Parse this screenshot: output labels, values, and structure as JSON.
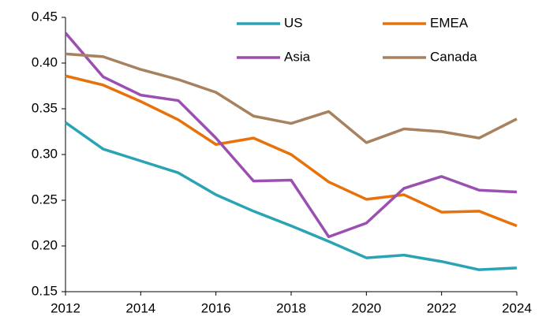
{
  "chart_data": {
    "type": "line",
    "x": [
      2012,
      2013,
      2014,
      2015,
      2016,
      2017,
      2018,
      2019,
      2020,
      2021,
      2022,
      2023,
      2024
    ],
    "series": [
      {
        "name": "US",
        "color": "#2aa3b5",
        "values": [
          0.335,
          0.306,
          0.293,
          0.28,
          0.256,
          0.238,
          0.222,
          0.205,
          0.187,
          0.19,
          0.183,
          0.174,
          0.176
        ]
      },
      {
        "name": "EMEA",
        "color": "#e8710a",
        "values": [
          0.386,
          0.376,
          0.358,
          0.338,
          0.311,
          0.318,
          0.3,
          0.27,
          0.251,
          0.256,
          0.237,
          0.238,
          0.222
        ]
      },
      {
        "name": "Asia",
        "color": "#9b4fb0",
        "values": [
          0.433,
          0.385,
          0.365,
          0.359,
          0.318,
          0.271,
          0.272,
          0.21,
          0.225,
          0.263,
          0.276,
          0.261,
          0.259
        ]
      },
      {
        "name": "Canada",
        "color": "#a8815f",
        "values": [
          0.41,
          0.407,
          0.393,
          0.382,
          0.368,
          0.342,
          0.334,
          0.347,
          0.313,
          0.328,
          0.325,
          0.318,
          0.339
        ]
      }
    ],
    "xlim": [
      2012,
      2024
    ],
    "xticks": [
      2012,
      2014,
      2016,
      2018,
      2020,
      2022,
      2024
    ],
    "ylim": [
      0.15,
      0.45
    ],
    "yticks": [
      0.15,
      {
        "value": 0.2,
        "label": "0.20"
      },
      0.25,
      {
        "value": 0.3,
        "label": "0.30"
      },
      0.35,
      {
        "value": 0.4,
        "label": "0.40"
      },
      0.45
    ],
    "grid": false
  }
}
